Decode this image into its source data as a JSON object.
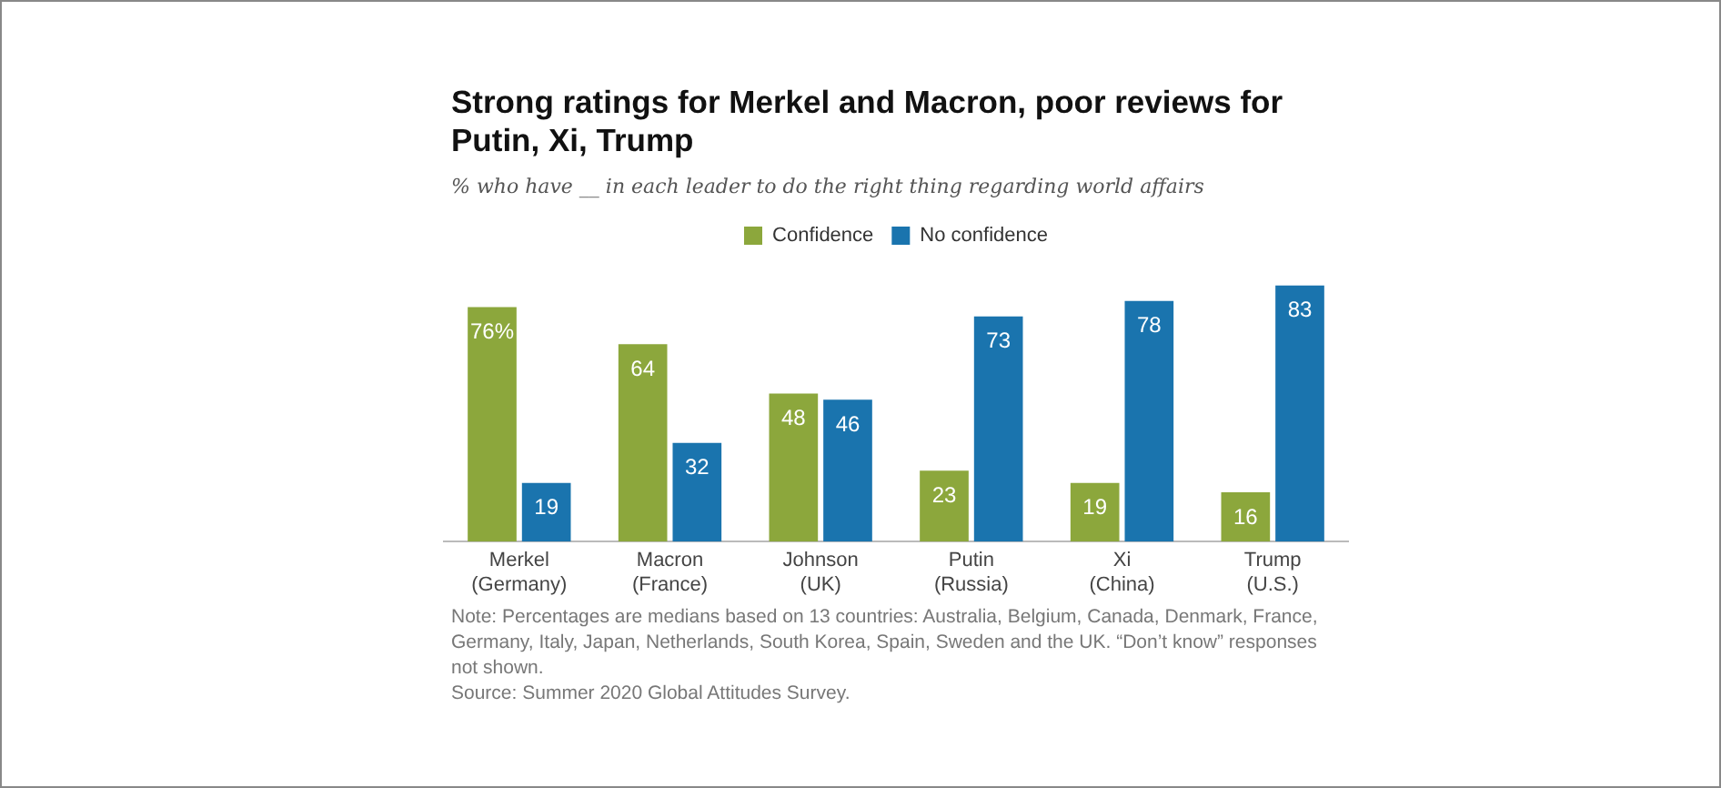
{
  "chart_data": {
    "type": "bar",
    "title": "Strong ratings for Merkel and Macron, poor reviews for Putin, Xi, Trump",
    "subtitle": "% who have __ in each leader to do the right thing regarding world affairs",
    "categories": [
      "Merkel\n(Germany)",
      "Macron\n(France)",
      "Johnson\n(UK)",
      "Putin\n(Russia)",
      "Xi\n(China)",
      "Trump\n(U.S.)"
    ],
    "series": [
      {
        "name": "Confidence",
        "color": "#8ca73c",
        "values": [
          76,
          64,
          48,
          23,
          19,
          16
        ],
        "value_labels": [
          "76%",
          "64",
          "48",
          "23",
          "19",
          "16"
        ]
      },
      {
        "name": "No confidence",
        "color": "#1a74ae",
        "values": [
          19,
          32,
          46,
          73,
          78,
          83
        ],
        "value_labels": [
          "19",
          "32",
          "46",
          "73",
          "78",
          "83"
        ]
      }
    ],
    "legend": "top",
    "grid": false,
    "tick_labels": "x",
    "annotations": [
      "Note: Percentages are medians based on 13 countries: Australia, Belgium, Canada, Denmark, France, Germany, Italy, Japan, Netherlands, South Korea, Spain, Sweden and the UK. “Don’t know” responses not shown.",
      "Source: Summer 2020 Global Attitudes Survey."
    ]
  }
}
